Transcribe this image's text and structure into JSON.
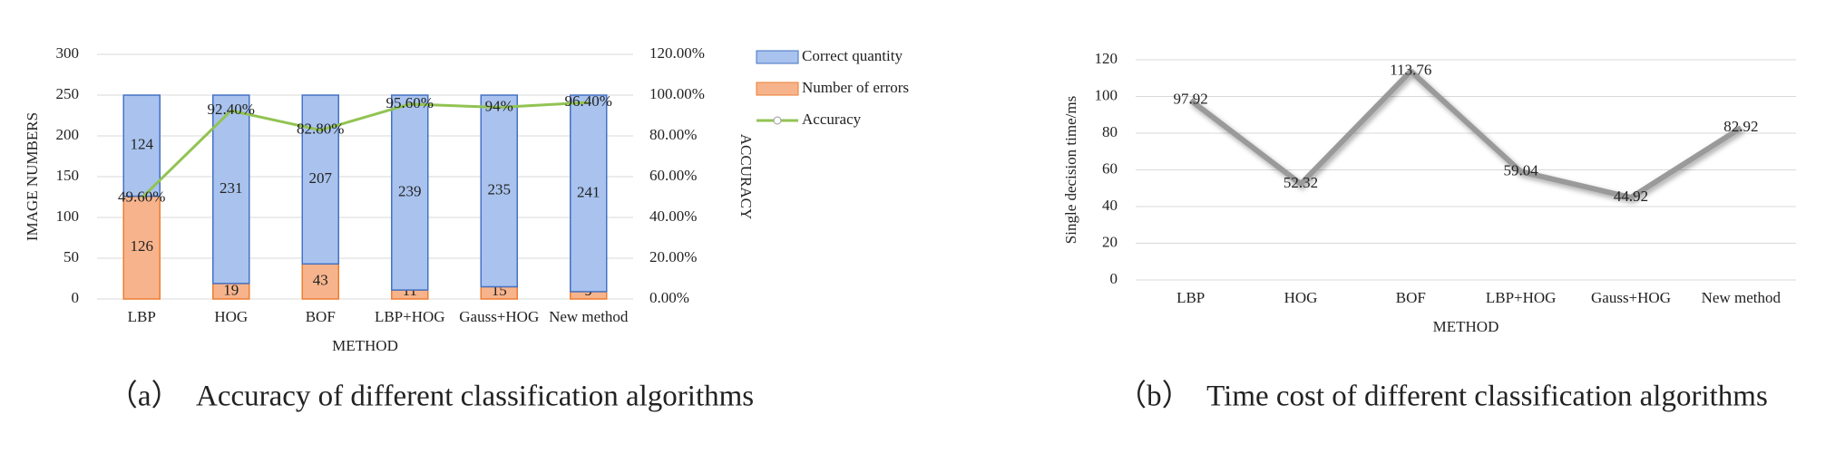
{
  "chart_data": [
    {
      "type": "bar",
      "caption": "（a）  Accuracy of different classification algorithms",
      "x_label": "METHOD",
      "y_label": "IMAGE NUMBERS",
      "y2_label": "ACCURACY",
      "categories": [
        "LBP",
        "HOG",
        "BOF",
        "LBP+HOG",
        "Gauss+HOG",
        "New method"
      ],
      "series": [
        {
          "name": "Correct quantity",
          "color": "#a9c3ee",
          "values": [
            124,
            231,
            207,
            239,
            235,
            241
          ]
        },
        {
          "name": "Number of errors",
          "color": "#f7b48c",
          "values": [
            126,
            19,
            43,
            11,
            15,
            9
          ]
        },
        {
          "name": "Accuracy",
          "type": "line",
          "axis": "y2",
          "color": "#92c353",
          "values": [
            49.6,
            92.4,
            82.8,
            95.6,
            94,
            96.4
          ],
          "value_labels": [
            "49.60%",
            "92.40%",
            "82.80%",
            "95.60%",
            "94%",
            "96.40%"
          ]
        }
      ],
      "ylim": [
        0,
        300
      ],
      "yticks": [
        0,
        50,
        100,
        150,
        200,
        250,
        300
      ],
      "y2lim": [
        0,
        120
      ],
      "y2ticks": [
        {
          "value": 0,
          "label": "0.00%"
        },
        {
          "value": 20,
          "label": "20.00%"
        },
        {
          "value": 40,
          "label": "40.00%"
        },
        {
          "value": 60,
          "label": "60.00%"
        },
        {
          "value": 80,
          "label": "80.00%"
        },
        {
          "value": 100,
          "label": "100.00%"
        },
        {
          "value": 120,
          "label": "120.00%"
        }
      ],
      "grid": true,
      "legend": "right"
    },
    {
      "type": "line",
      "caption": "（b）  Time cost of different classification algorithms",
      "x_label": "METHOD",
      "y_label": "Single decision time/ms",
      "categories": [
        "LBP",
        "HOG",
        "BOF",
        "LBP+HOG",
        "Gauss+HOG",
        "New method"
      ],
      "series": [
        {
          "name": "Time",
          "color": "#9a9a9a",
          "values": [
            97.92,
            52.32,
            113.76,
            59.04,
            44.92,
            82.92
          ]
        }
      ],
      "ylim": [
        0,
        120
      ],
      "yticks": [
        0,
        20,
        40,
        60,
        80,
        100,
        120
      ],
      "grid": true
    }
  ]
}
